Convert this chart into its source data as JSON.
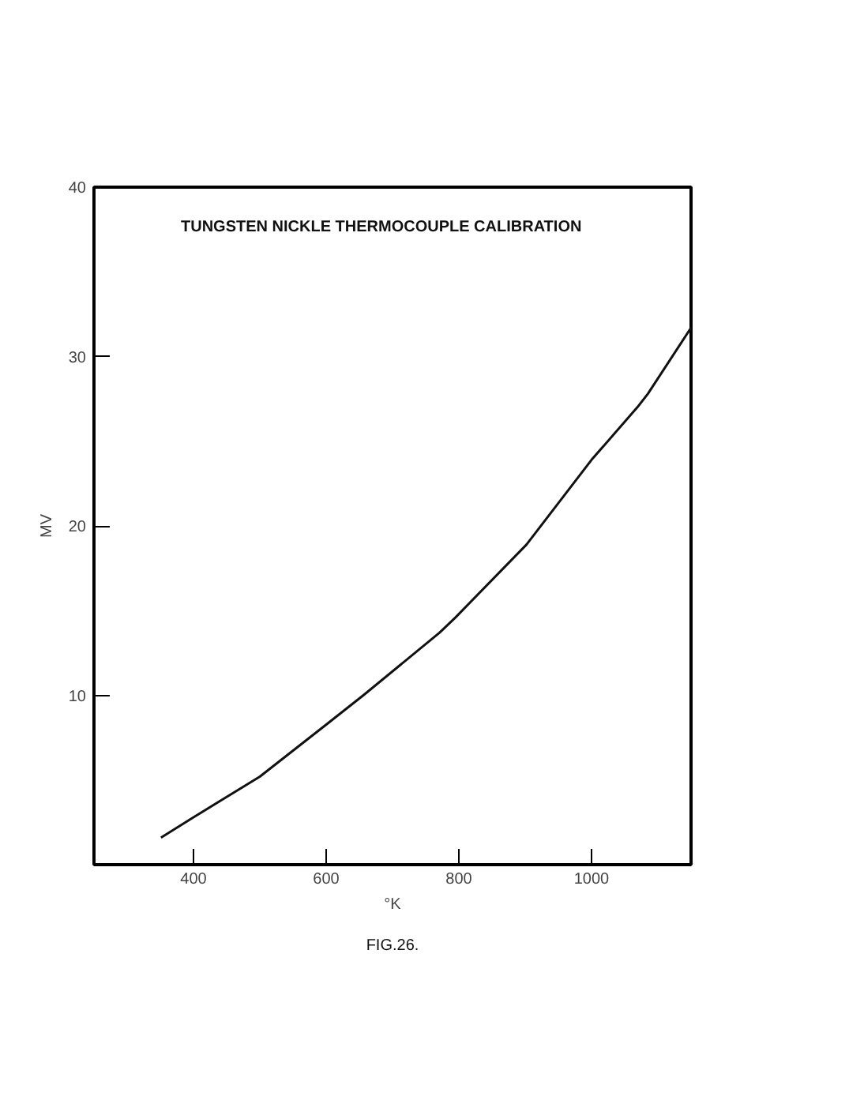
{
  "chart_data": {
    "type": "line",
    "title": "TUNGSTEN NICKLE THERMOCOUPLE CALIBRATION",
    "xlabel": "°K",
    "ylabel": "MV",
    "annotations": [
      "FIG.26."
    ],
    "x": [
      351,
      400,
      500,
      601,
      656,
      771,
      795,
      902,
      1000,
      1069,
      1085,
      1150
    ],
    "series": [
      {
        "color": "#111111",
        "values": [
          1.6,
          2.8,
          5.2,
          8.3,
          10.0,
          13.7,
          14.6,
          18.9,
          23.9,
          27.0,
          27.8,
          31.7
        ]
      }
    ],
    "xlim": [
      250,
      1150
    ],
    "ylim": [
      0,
      40
    ],
    "xticks": [
      400,
      600,
      800,
      1000
    ],
    "yticks": [
      10,
      20,
      30,
      40
    ],
    "grid": false,
    "marker": "none",
    "line_style": "solid"
  }
}
